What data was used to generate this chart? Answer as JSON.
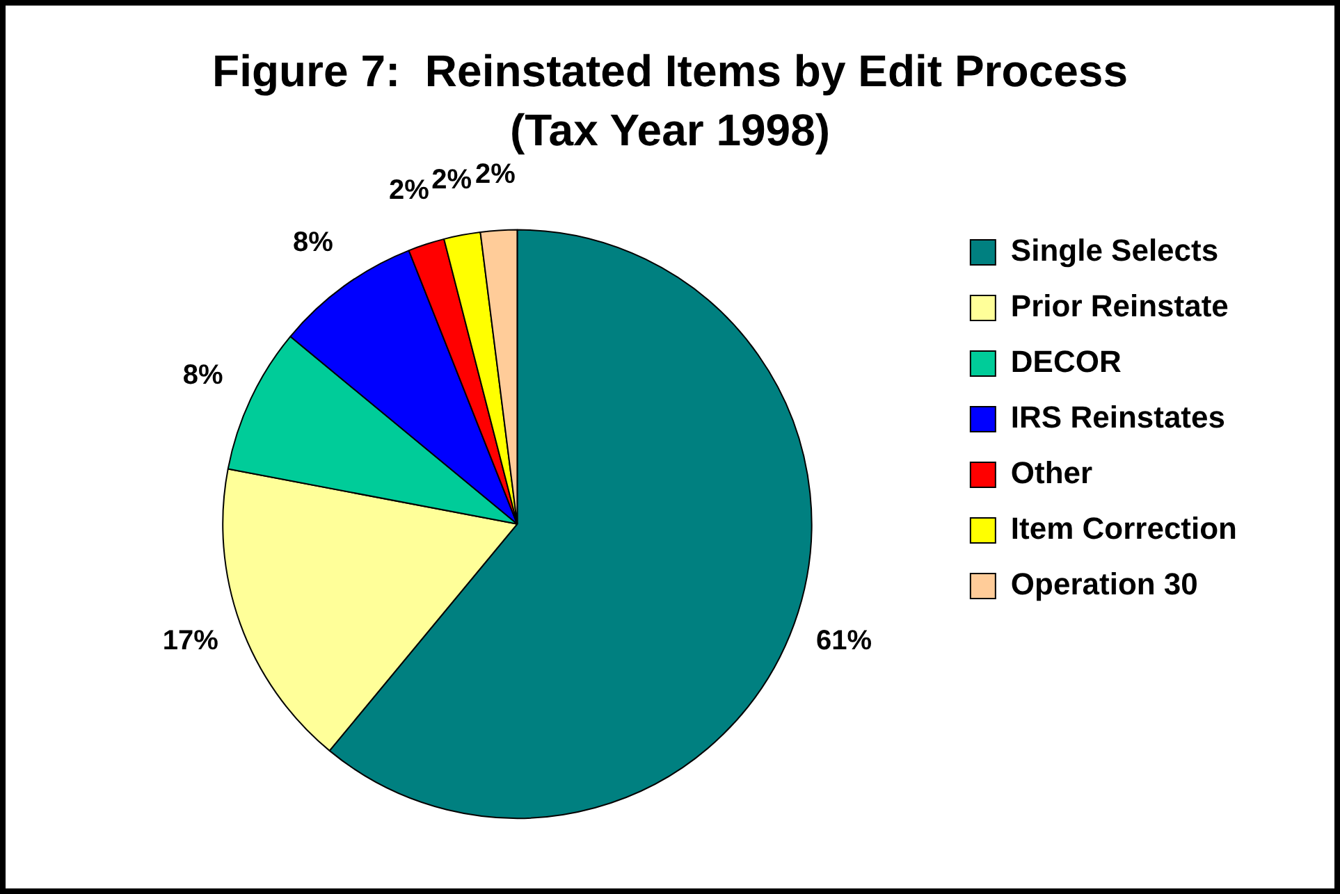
{
  "chart_data": {
    "type": "pie",
    "title": "Figure 7:  Reinstated Items by Edit Process",
    "subtitle": "(Tax Year 1998)",
    "categories": [
      "Single Selects",
      "Prior Reinstate",
      "DECOR",
      "IRS Reinstates",
      "Other",
      "Item Correction",
      "Operation 30"
    ],
    "values": [
      61,
      17,
      8,
      8,
      2,
      2,
      2
    ],
    "colors": [
      "#008080",
      "#ffff99",
      "#00cc99",
      "#0000ff",
      "#ff0000",
      "#ffff00",
      "#ffcc99"
    ],
    "value_labels": [
      "61%",
      "17%",
      "8%",
      "8%",
      "2%",
      "2%",
      "2%"
    ],
    "legend": "right"
  }
}
